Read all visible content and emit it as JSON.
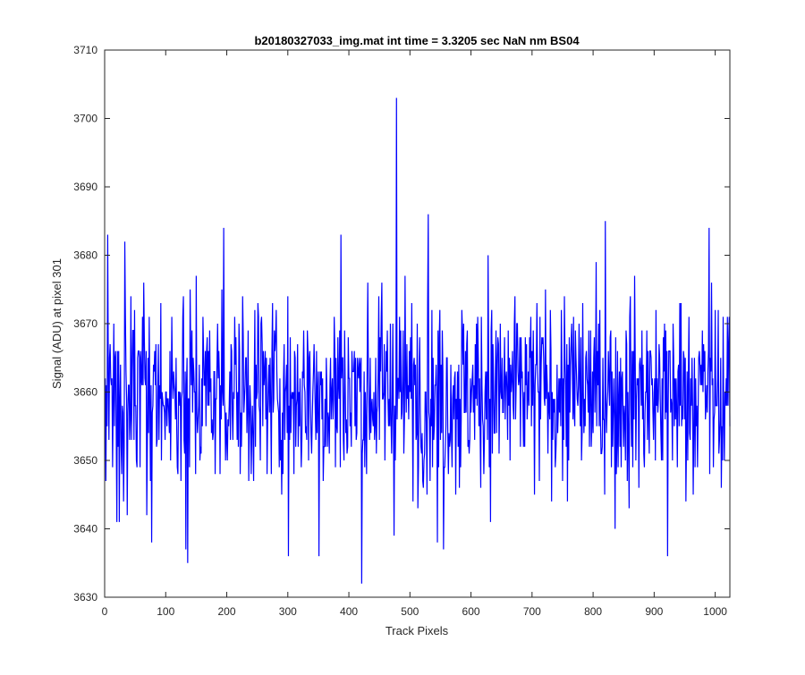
{
  "chart_data": {
    "type": "line",
    "title": "b20180327033_img.mat int time = 3.3205 sec  NaN nm BS04",
    "xlabel": "Track Pixels",
    "ylabel": "Signal (ADU) at pixel 301",
    "xlim": [
      0,
      1024
    ],
    "ylim": [
      3630,
      3710
    ],
    "x_ticks": [
      "0",
      "100",
      "200",
      "300",
      "400",
      "500",
      "600",
      "700",
      "800",
      "900",
      "1000"
    ],
    "y_ticks": [
      "3630",
      "3640",
      "3650",
      "3660",
      "3670",
      "3680",
      "3690",
      "3700",
      "3710"
    ],
    "grid": false,
    "series": [
      {
        "color": "#0000ff",
        "x_start": 1,
        "x_step": 1,
        "length": 1024,
        "noise_mean": 3660,
        "noise_sd": 7,
        "min": 3632,
        "max": 3703,
        "annotated_points": [
          {
            "x": 2,
            "y": 3647
          },
          {
            "x": 5,
            "y": 3683
          },
          {
            "x": 20,
            "y": 3641
          },
          {
            "x": 24,
            "y": 3641
          },
          {
            "x": 33,
            "y": 3682
          },
          {
            "x": 37,
            "y": 3642
          },
          {
            "x": 133,
            "y": 3637
          },
          {
            "x": 136,
            "y": 3635
          },
          {
            "x": 195,
            "y": 3684
          },
          {
            "x": 301,
            "y": 3636
          },
          {
            "x": 351,
            "y": 3636
          },
          {
            "x": 387,
            "y": 3683
          },
          {
            "x": 421,
            "y": 3632
          },
          {
            "x": 478,
            "y": 3703
          },
          {
            "x": 530,
            "y": 3686
          },
          {
            "x": 545,
            "y": 3638
          },
          {
            "x": 555,
            "y": 3637
          },
          {
            "x": 628,
            "y": 3680
          },
          {
            "x": 820,
            "y": 3685
          },
          {
            "x": 836,
            "y": 3640
          },
          {
            "x": 922,
            "y": 3636
          },
          {
            "x": 990,
            "y": 3684
          },
          {
            "x": 1010,
            "y": 3646
          }
        ]
      }
    ]
  }
}
